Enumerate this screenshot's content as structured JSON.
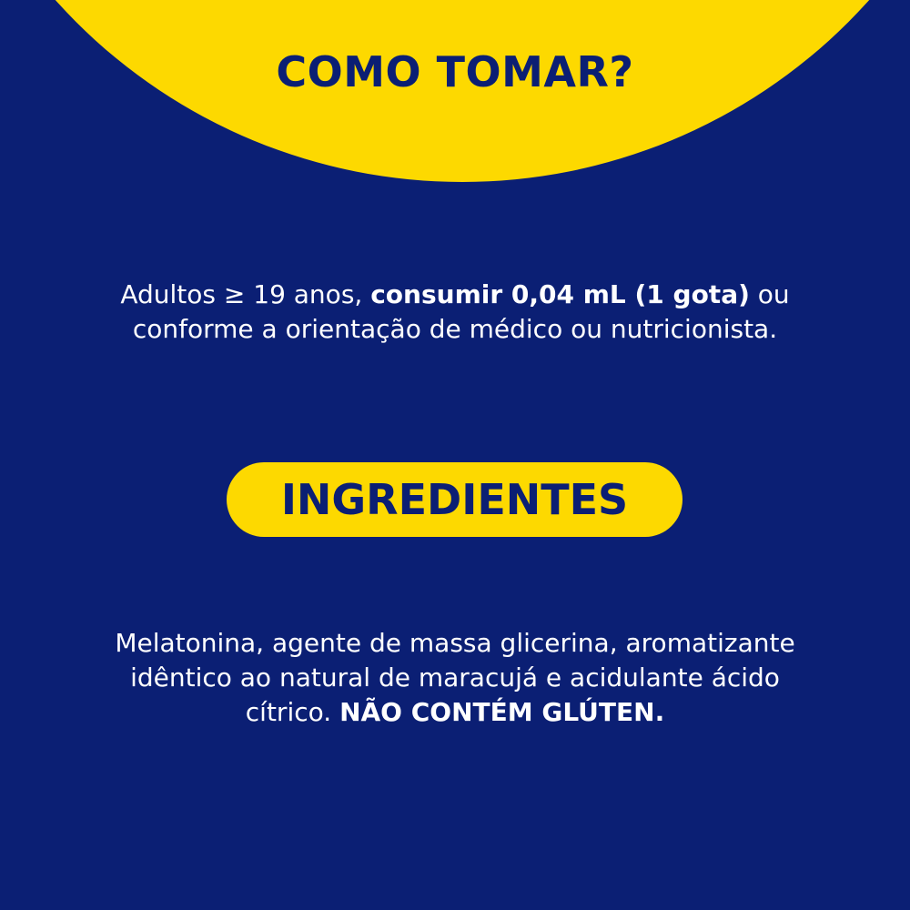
{
  "colors": {
    "background": "#0b1f74",
    "accent": "#fdd900",
    "text": "#ffffff"
  },
  "how_to": {
    "title": "COMO TOMAR?",
    "text_before": "Adultos ≥ 19 anos, ",
    "text_bold": "consumir 0,04 mL (1 gota)",
    "text_after": " ou",
    "line2": "conforme a orientação de médico ou nutricionista."
  },
  "ingredients": {
    "title": "INGREDIENTES",
    "line1": "Melatonina, agente de massa glicerina, aromatizante",
    "line2": "idêntico ao natural de maracujá e acidulante ácido",
    "line3": "cítrico. ",
    "bold": "NÃO CONTÉM GLÚTEN."
  }
}
